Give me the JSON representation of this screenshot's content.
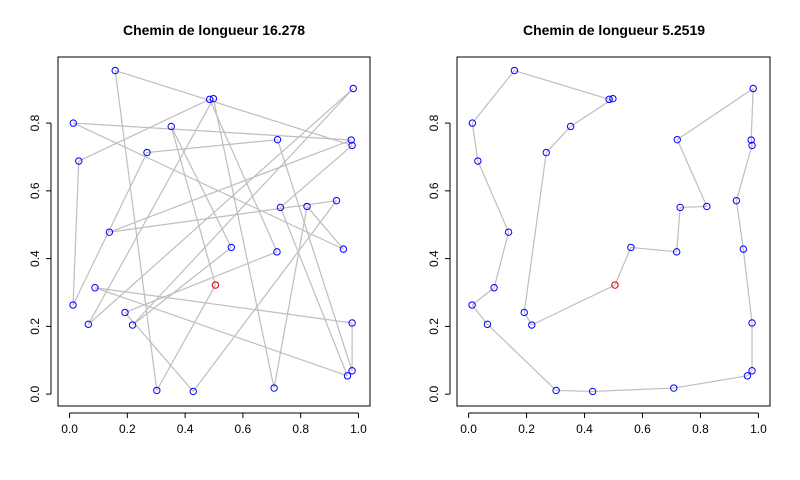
{
  "chart_data": [
    {
      "type": "scatter",
      "title": "Chemin de longueur 16.278",
      "xlabel": "",
      "ylabel": "",
      "xlim": [
        0,
        1
      ],
      "ylim": [
        0,
        0.96
      ],
      "xticks": [
        "0.0",
        "0.2",
        "0.4",
        "0.6",
        "0.8",
        "1.0"
      ],
      "yticks": [
        "0.0",
        "0.2",
        "0.4",
        "0.6",
        "0.8"
      ],
      "grid": false,
      "start_point": [
        0.505,
        0.322
      ],
      "points": [
        [
          0.505,
          0.322
        ],
        [
          0.485,
          0.87
        ],
        [
          0.708,
          0.018
        ],
        [
          0.975,
          0.75
        ],
        [
          0.013,
          0.8
        ],
        [
          0.428,
          0.008
        ],
        [
          0.978,
          0.069
        ],
        [
          0.192,
          0.241
        ],
        [
          0.138,
          0.478
        ],
        [
          0.948,
          0.428
        ],
        [
          0.718,
          0.42
        ],
        [
          0.498,
          0.872
        ],
        [
          0.218,
          0.204
        ],
        [
          0.978,
          0.21
        ],
        [
          0.032,
          0.688
        ],
        [
          0.352,
          0.79
        ],
        [
          0.065,
          0.206
        ],
        [
          0.73,
          0.551
        ],
        [
          0.962,
          0.054
        ],
        [
          0.978,
          0.734
        ],
        [
          0.924,
          0.571
        ],
        [
          0.268,
          0.713
        ],
        [
          0.088,
          0.314
        ],
        [
          0.822,
          0.554
        ],
        [
          0.982,
          0.902
        ],
        [
          0.72,
          0.751
        ],
        [
          0.012,
          0.263
        ],
        [
          0.56,
          0.433
        ],
        [
          0.158,
          0.955
        ],
        [
          0.302,
          0.011
        ]
      ],
      "order": [
        0,
        15,
        27,
        12,
        24,
        16,
        11,
        2,
        23,
        9,
        4,
        3,
        8,
        20,
        5,
        7,
        10,
        1,
        14,
        26,
        21,
        25,
        6,
        13,
        22,
        18,
        17,
        19,
        28,
        29,
        0
      ],
      "colors": {
        "point": "#0000ff",
        "start": "#cc0000",
        "path": "#bebebe"
      }
    },
    {
      "type": "scatter",
      "title": "Chemin de longueur 5.2519",
      "xlabel": "",
      "ylabel": "",
      "xlim": [
        0,
        1
      ],
      "ylim": [
        0,
        0.96
      ],
      "xticks": [
        "0.0",
        "0.2",
        "0.4",
        "0.6",
        "0.8",
        "1.0"
      ],
      "yticks": [
        "0.0",
        "0.2",
        "0.4",
        "0.6",
        "0.8"
      ],
      "grid": false,
      "start_point": [
        0.505,
        0.322
      ],
      "points": [
        [
          0.505,
          0.322
        ],
        [
          0.485,
          0.87
        ],
        [
          0.708,
          0.018
        ],
        [
          0.975,
          0.75
        ],
        [
          0.013,
          0.8
        ],
        [
          0.428,
          0.008
        ],
        [
          0.978,
          0.069
        ],
        [
          0.192,
          0.241
        ],
        [
          0.138,
          0.478
        ],
        [
          0.948,
          0.428
        ],
        [
          0.718,
          0.42
        ],
        [
          0.498,
          0.872
        ],
        [
          0.218,
          0.204
        ],
        [
          0.978,
          0.21
        ],
        [
          0.032,
          0.688
        ],
        [
          0.352,
          0.79
        ],
        [
          0.065,
          0.206
        ],
        [
          0.73,
          0.551
        ],
        [
          0.962,
          0.054
        ],
        [
          0.978,
          0.734
        ],
        [
          0.924,
          0.571
        ],
        [
          0.268,
          0.713
        ],
        [
          0.088,
          0.314
        ],
        [
          0.822,
          0.554
        ],
        [
          0.982,
          0.902
        ],
        [
          0.72,
          0.751
        ],
        [
          0.012,
          0.263
        ],
        [
          0.56,
          0.433
        ],
        [
          0.158,
          0.955
        ],
        [
          0.302,
          0.011
        ]
      ],
      "order": [
        0,
        27,
        10,
        17,
        23,
        25,
        24,
        3,
        19,
        20,
        9,
        13,
        6,
        18,
        2,
        5,
        29,
        16,
        26,
        22,
        8,
        14,
        4,
        28,
        1,
        11,
        15,
        21,
        7,
        12,
        0
      ],
      "colors": {
        "point": "#0000ff",
        "start": "#cc0000",
        "path": "#bebebe"
      }
    }
  ]
}
